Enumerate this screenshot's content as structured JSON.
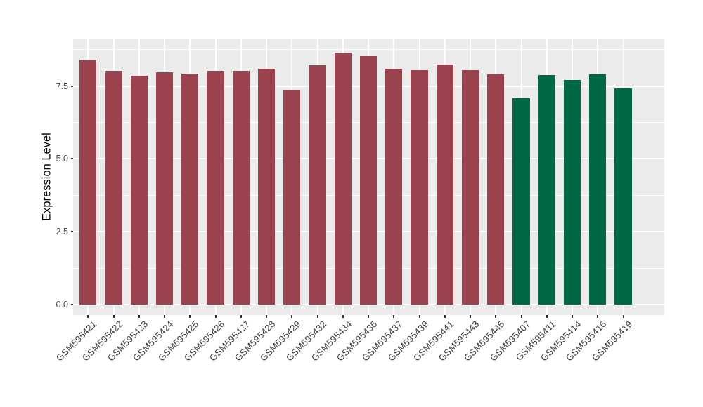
{
  "figure": {
    "background": "#FFFFFF",
    "panel_background": "#EBEBEB",
    "gridline_color": "#FFFFFF",
    "tick_mark_color": "#333333",
    "axis_text_color": "#4D4D4D",
    "axis_title_color": "#000000"
  },
  "chart_data": {
    "type": "bar",
    "title": "",
    "xlabel": "",
    "ylabel": "Expression Level",
    "legend_position": "none",
    "grid": "white major + minor horizontal, white vertical at each category",
    "categories": [
      "GSM595421",
      "GSM595422",
      "GSM595423",
      "GSM595424",
      "GSM595425",
      "GSM595426",
      "GSM595427",
      "GSM595428",
      "GSM595429",
      "GSM595432",
      "GSM595434",
      "GSM595435",
      "GSM595437",
      "GSM595439",
      "GSM595441",
      "GSM595443",
      "GSM595445",
      "GSM595407",
      "GSM595411",
      "GSM595414",
      "GSM595416",
      "GSM595419"
    ],
    "values": [
      8.4,
      8.01,
      7.85,
      7.98,
      7.93,
      8.02,
      8.02,
      8.09,
      7.38,
      8.21,
      8.65,
      8.53,
      8.08,
      8.03,
      8.23,
      8.05,
      7.9,
      7.07,
      7.87,
      7.7,
      7.9,
      7.41
    ],
    "bar_colors": [
      "#9A434F",
      "#9A434F",
      "#9A434F",
      "#9A434F",
      "#9A434F",
      "#9A434F",
      "#9A434F",
      "#9A434F",
      "#9A434F",
      "#9A434F",
      "#9A434F",
      "#9A434F",
      "#9A434F",
      "#9A434F",
      "#9A434F",
      "#9A434F",
      "#9A434F",
      "#006747",
      "#006747",
      "#006747",
      "#006747",
      "#006747"
    ],
    "color_palette": {
      "maroon": "#9A434F",
      "green": "#006747"
    },
    "yticks": {
      "values": [
        0.0,
        2.5,
        5.0,
        7.5
      ],
      "labels": [
        "0.0",
        "2.5",
        "5.0",
        "7.5"
      ]
    },
    "yticks_minor": [
      1.25,
      3.75,
      6.25,
      8.75
    ],
    "ylim": [
      -0.34,
      9.1
    ]
  }
}
